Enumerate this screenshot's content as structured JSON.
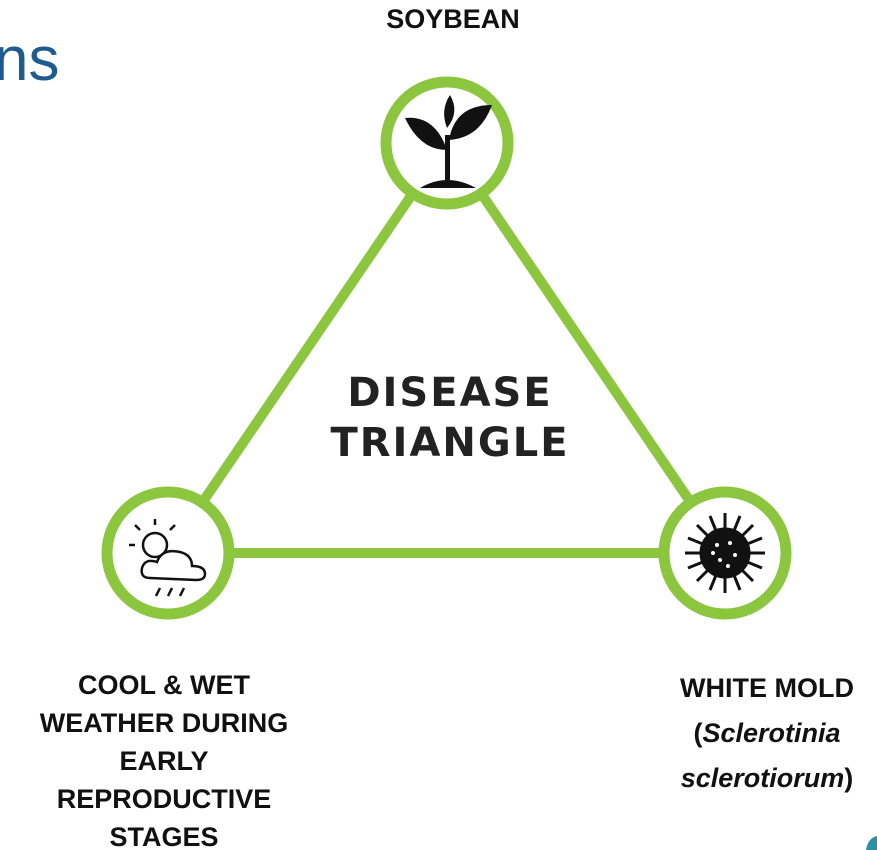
{
  "header": {
    "title_fragment": "ns"
  },
  "center": {
    "lines": [
      "DISEASE",
      "TRIANGLE"
    ]
  },
  "nodes": [
    {
      "label_lines": [
        "SOYBEAN"
      ]
    },
    {
      "label_lines": [
        "COOL & WET",
        "WEATHER DURING",
        "EARLY",
        "REPRODUCTIVE",
        "STAGES"
      ]
    },
    {
      "label_lines": [
        [
          "WHITE MOLD"
        ],
        [
          "(",
          "Sclerotinia"
        ],
        [
          "sclerotiorum",
          ")"
        ]
      ]
    }
  ]
}
